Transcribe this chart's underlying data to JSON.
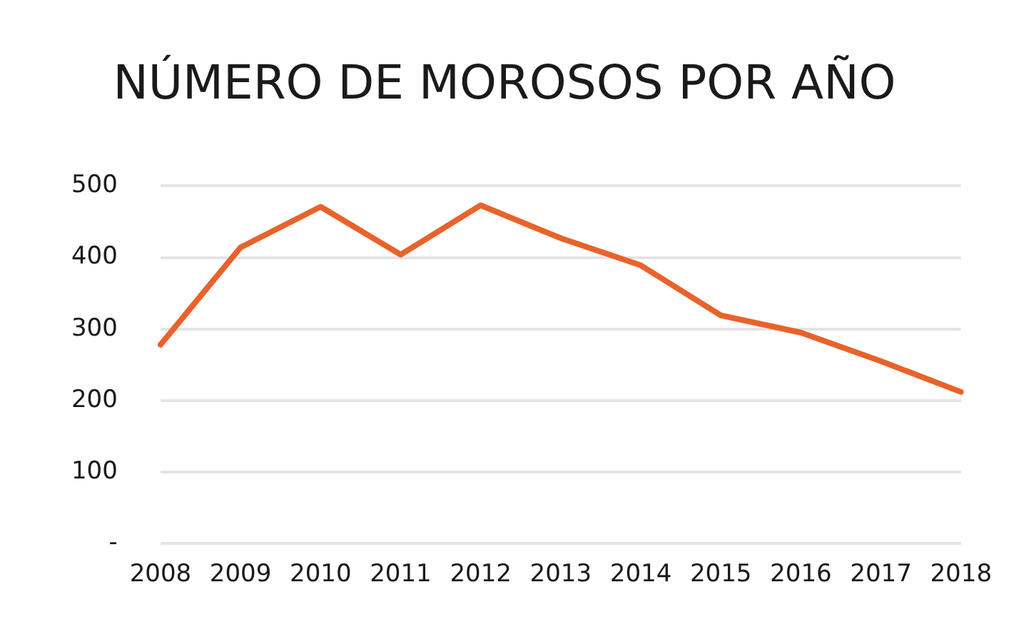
{
  "chart_data": {
    "type": "line",
    "title": "NÚMERO DE MOROSOS POR AÑO",
    "categories": [
      "2008",
      "2009",
      "2010",
      "2011",
      "2012",
      "2013",
      "2014",
      "2015",
      "2016",
      "2017",
      "2018"
    ],
    "series": [
      {
        "color": "#e8632b",
        "values": [
          278,
          414,
          471,
          404,
          473,
          427,
          389,
          319,
          295,
          255,
          212
        ]
      }
    ],
    "ylim": [
      0,
      500
    ],
    "yticks": [
      {
        "value": 0,
        "label": "-"
      },
      100,
      200,
      300,
      400,
      500
    ],
    "grid": "y",
    "legend": false,
    "marker": "none",
    "line_style": "solid"
  }
}
